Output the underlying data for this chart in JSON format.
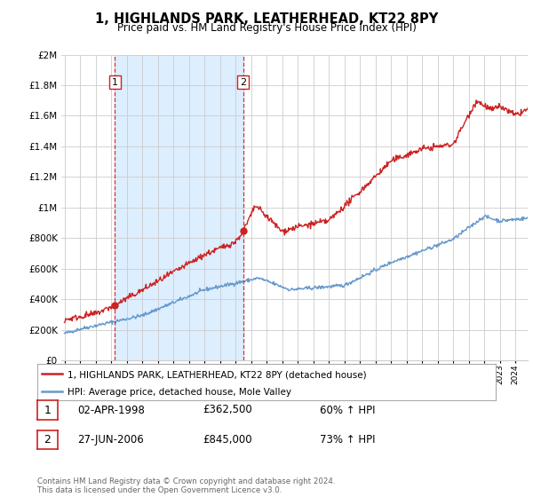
{
  "title": "1, HIGHLANDS PARK, LEATHERHEAD, KT22 8PY",
  "subtitle": "Price paid vs. HM Land Registry's House Price Index (HPI)",
  "legend_line1": "1, HIGHLANDS PARK, LEATHERHEAD, KT22 8PY (detached house)",
  "legend_line2": "HPI: Average price, detached house, Mole Valley",
  "annotation1_label": "1",
  "annotation1_date": "02-APR-1998",
  "annotation1_price": "£362,500",
  "annotation1_hpi": "60% ↑ HPI",
  "annotation1_year": 1998.25,
  "annotation1_value": 362500,
  "annotation2_label": "2",
  "annotation2_date": "27-JUN-2006",
  "annotation2_price": "£845,000",
  "annotation2_hpi": "73% ↑ HPI",
  "annotation2_year": 2006.5,
  "annotation2_value": 845000,
  "copyright_text": "Contains HM Land Registry data © Crown copyright and database right 2024.\nThis data is licensed under the Open Government Licence v3.0.",
  "red_color": "#cc2222",
  "blue_color": "#6699cc",
  "shade_color": "#ddeeff",
  "grid_color": "#cccccc",
  "background_color": "#ffffff",
  "ylim_min": 0,
  "ylim_max": 2000000,
  "xmin": 1995,
  "xmax": 2025
}
